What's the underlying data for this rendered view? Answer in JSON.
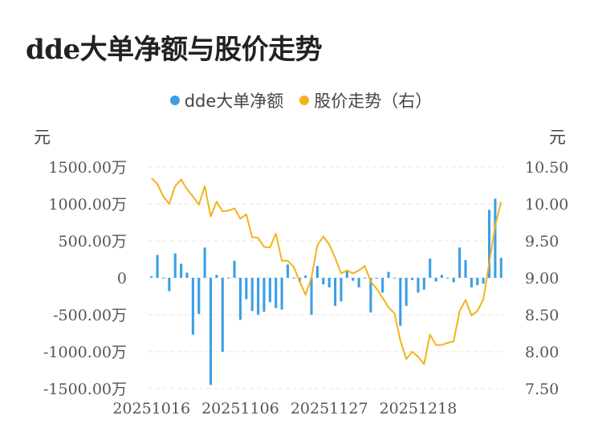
{
  "title": "dde大单净额与股价走势",
  "legend": [
    {
      "label": "dde大单净额",
      "color": "#3b9fe6"
    },
    {
      "label": "股价走势（右）",
      "color": "#f4b21a"
    }
  ],
  "units": {
    "left": "元",
    "right": "元"
  },
  "chart_data": {
    "type": "bar+line",
    "title": "dde大单净额与股价走势",
    "x_tick_labels": [
      "20251016",
      "20251106",
      "20251127",
      "20251218"
    ],
    "x_tick_positions": [
      0,
      15,
      30,
      45
    ],
    "left_axis": {
      "ylim": [
        -1500,
        1500
      ],
      "ticks": [
        1500,
        1000,
        500,
        0,
        -500,
        -1000,
        -1500
      ],
      "tick_labels": [
        "1500.00万",
        "1000.00万",
        "500.00万",
        "0",
        "-500.00万",
        "-1000.00万",
        "-1500.00万"
      ]
    },
    "right_axis": {
      "ylim": [
        7.5,
        10.5
      ],
      "ticks": [
        10.5,
        10.0,
        9.5,
        9.0,
        8.5,
        8.0,
        7.5
      ],
      "tick_labels": [
        "10.50",
        "10.00",
        "9.50",
        "9.00",
        "8.50",
        "8.00",
        "7.50"
      ]
    },
    "grid": true,
    "series": [
      {
        "name": "dde大单净额",
        "type": "bar",
        "color": "#3b9fe6",
        "values": [
          20,
          310,
          0,
          -180,
          330,
          190,
          70,
          -770,
          -490,
          410,
          -1450,
          40,
          -1000,
          0,
          230,
          -570,
          -290,
          -450,
          -500,
          -460,
          -330,
          -410,
          -430,
          180,
          0,
          -50,
          30,
          -500,
          160,
          -90,
          -130,
          -380,
          -320,
          90,
          -40,
          -130,
          0,
          -470,
          0,
          -200,
          80,
          0,
          -650,
          -380,
          -30,
          -200,
          -160,
          260,
          -50,
          40,
          0,
          -60,
          410,
          240,
          -130,
          -100,
          -80,
          920,
          1070,
          270
        ]
      },
      {
        "name": "股价走势（右）",
        "type": "line",
        "color": "#f4b21a",
        "values": [
          10.35,
          10.27,
          10.1,
          10.0,
          10.24,
          10.33,
          10.2,
          10.1,
          9.99,
          10.24,
          9.83,
          10.03,
          9.9,
          9.91,
          9.94,
          9.8,
          9.86,
          9.55,
          9.54,
          9.42,
          9.41,
          9.6,
          9.23,
          9.23,
          9.15,
          8.95,
          8.77,
          9.0,
          9.44,
          9.56,
          9.45,
          9.27,
          9.06,
          9.1,
          9.06,
          9.1,
          9.16,
          8.95,
          8.85,
          8.73,
          8.6,
          8.52,
          8.15,
          7.9,
          8.0,
          7.93,
          7.83,
          8.23,
          8.09,
          8.09,
          8.12,
          8.14,
          8.55,
          8.7,
          8.49,
          8.55,
          8.71,
          9.2,
          9.7,
          10.03
        ]
      }
    ]
  }
}
